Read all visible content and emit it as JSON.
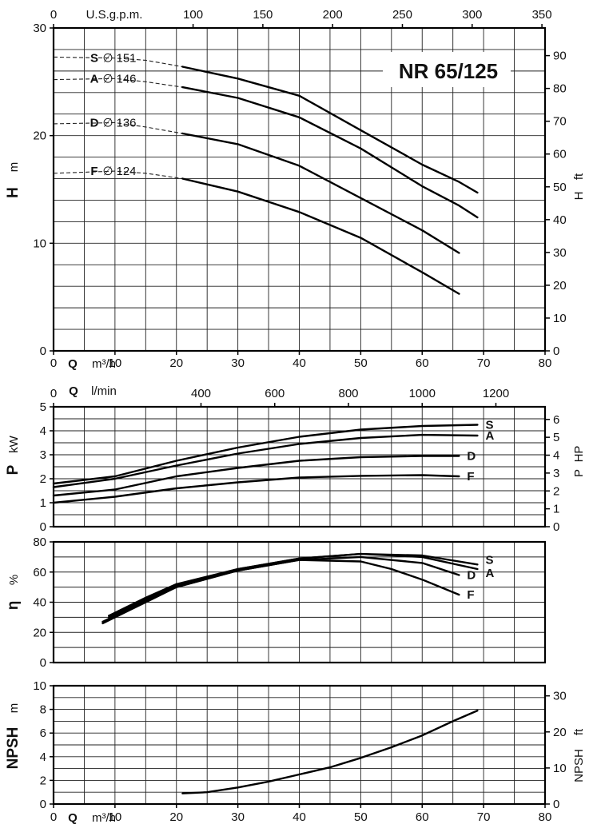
{
  "chart_data": {
    "title": "NR 65/125",
    "panels": [
      {
        "id": "head",
        "type": "line",
        "ylabel_big": "H",
        "ylabel_unit": "m",
        "y2label_big": "H",
        "y2label_unit": "ft",
        "x_top_label": "U.S.g.p.m.",
        "x_bottom_q": "Q",
        "x_bottom_unit": "m³/h",
        "x_ticks": [
          "0",
          "10",
          "20",
          "30",
          "40",
          "50",
          "60",
          "70",
          "80"
        ],
        "x_top_ticks": [
          "0",
          "100",
          "150",
          "200",
          "250",
          "300",
          "350"
        ],
        "y_ticks": [
          "0",
          "10",
          "20",
          "30"
        ],
        "y2_ticks": [
          "0",
          "10",
          "20",
          "30",
          "40",
          "50",
          "60",
          "70",
          "80",
          "90"
        ],
        "series": [
          {
            "name": "S",
            "diameter": "151",
            "solid": [
              [
                21,
                26.4
              ],
              [
                30,
                25.3
              ],
              [
                40,
                23.7
              ],
              [
                50,
                20.5
              ],
              [
                60,
                17.3
              ],
              [
                66,
                15.7
              ],
              [
                69,
                14.7
              ]
            ],
            "dashed": [
              [
                0,
                27.3
              ],
              [
                10,
                27.2
              ],
              [
                15,
                27.0
              ],
              [
                21,
                26.4
              ]
            ]
          },
          {
            "name": "A",
            "diameter": "146",
            "solid": [
              [
                21,
                24.5
              ],
              [
                30,
                23.5
              ],
              [
                40,
                21.7
              ],
              [
                50,
                18.8
              ],
              [
                60,
                15.3
              ],
              [
                66,
                13.5
              ],
              [
                69,
                12.4
              ]
            ],
            "dashed": [
              [
                0,
                25.2
              ],
              [
                10,
                25.3
              ],
              [
                15,
                25.0
              ],
              [
                21,
                24.5
              ]
            ]
          },
          {
            "name": "D",
            "diameter": "136",
            "solid": [
              [
                21,
                20.2
              ],
              [
                30,
                19.2
              ],
              [
                40,
                17.2
              ],
              [
                50,
                14.2
              ],
              [
                60,
                11.2
              ],
              [
                66,
                9.1
              ]
            ],
            "dashed": [
              [
                0,
                21.1
              ],
              [
                10,
                21.2
              ],
              [
                15,
                20.8
              ],
              [
                21,
                20.2
              ]
            ]
          },
          {
            "name": "F",
            "diameter": "124",
            "solid": [
              [
                21,
                16.0
              ],
              [
                30,
                14.8
              ],
              [
                40,
                12.9
              ],
              [
                50,
                10.5
              ],
              [
                60,
                7.3
              ],
              [
                66,
                5.3
              ]
            ],
            "dashed": [
              [
                0,
                16.5
              ],
              [
                10,
                16.7
              ],
              [
                15,
                16.5
              ],
              [
                21,
                16.0
              ]
            ]
          }
        ]
      },
      {
        "id": "power",
        "type": "line",
        "ylabel_big": "P",
        "ylabel_unit": "kW",
        "y2label_big": "P",
        "y2label_unit": "HP",
        "x_top_q": "Q",
        "x_top_unit": "l/min",
        "x_top_ticks": [
          "0",
          "400",
          "600",
          "800",
          "1000",
          "1200"
        ],
        "y_ticks": [
          "0",
          "1",
          "2",
          "3",
          "4",
          "5"
        ],
        "y2_ticks": [
          "0",
          "1",
          "2",
          "3",
          "4",
          "5",
          "6"
        ],
        "series": [
          {
            "name": "S",
            "points": [
              [
                0,
                1.8
              ],
              [
                10,
                2.1
              ],
              [
                20,
                2.75
              ],
              [
                30,
                3.3
              ],
              [
                40,
                3.75
              ],
              [
                50,
                4.05
              ],
              [
                60,
                4.2
              ],
              [
                69,
                4.25
              ]
            ]
          },
          {
            "name": "A",
            "points": [
              [
                0,
                1.65
              ],
              [
                10,
                2.0
              ],
              [
                20,
                2.55
              ],
              [
                30,
                3.05
              ],
              [
                40,
                3.45
              ],
              [
                50,
                3.7
              ],
              [
                60,
                3.83
              ],
              [
                69,
                3.8
              ]
            ]
          },
          {
            "name": "D",
            "points": [
              [
                0,
                1.3
              ],
              [
                10,
                1.55
              ],
              [
                20,
                2.1
              ],
              [
                30,
                2.45
              ],
              [
                40,
                2.75
              ],
              [
                50,
                2.9
              ],
              [
                60,
                2.95
              ],
              [
                66,
                2.95
              ]
            ]
          },
          {
            "name": "F",
            "points": [
              [
                0,
                1.0
              ],
              [
                10,
                1.25
              ],
              [
                20,
                1.6
              ],
              [
                30,
                1.85
              ],
              [
                40,
                2.05
              ],
              [
                50,
                2.12
              ],
              [
                60,
                2.15
              ],
              [
                66,
                2.1
              ]
            ]
          }
        ]
      },
      {
        "id": "efficiency",
        "type": "line",
        "ylabel_big": "η",
        "ylabel_unit": "%",
        "y_ticks": [
          "0",
          "20",
          "40",
          "60",
          "80"
        ],
        "series": [
          {
            "name": "S",
            "points": [
              [
                9,
                31
              ],
              [
                15,
                43
              ],
              [
                20,
                52
              ],
              [
                30,
                62
              ],
              [
                40,
                69
              ],
              [
                50,
                72
              ],
              [
                60,
                71
              ],
              [
                69,
                65
              ]
            ]
          },
          {
            "name": "A",
            "points": [
              [
                9,
                30
              ],
              [
                15,
                42
              ],
              [
                20,
                51
              ],
              [
                30,
                62
              ],
              [
                40,
                69
              ],
              [
                50,
                72
              ],
              [
                60,
                70
              ],
              [
                69,
                62
              ]
            ]
          },
          {
            "name": "D",
            "points": [
              [
                8,
                27
              ],
              [
                15,
                41
              ],
              [
                20,
                50
              ],
              [
                30,
                61
              ],
              [
                40,
                68
              ],
              [
                50,
                70
              ],
              [
                60,
                66
              ],
              [
                66,
                58
              ]
            ]
          },
          {
            "name": "F",
            "points": [
              [
                8,
                26
              ],
              [
                15,
                40
              ],
              [
                20,
                50
              ],
              [
                30,
                61
              ],
              [
                40,
                68
              ],
              [
                50,
                67
              ],
              [
                55,
                62
              ],
              [
                60,
                55
              ],
              [
                66,
                45
              ]
            ]
          }
        ]
      },
      {
        "id": "npsh",
        "type": "line",
        "ylabel_big": "NPSH",
        "ylabel_unit": "m",
        "y2label_big": "NPSH",
        "y2label_unit": "ft",
        "x_bottom_q": "Q",
        "x_bottom_unit": "m³/h",
        "x_ticks": [
          "0",
          "10",
          "20",
          "30",
          "40",
          "50",
          "60",
          "70",
          "80"
        ],
        "y_ticks": [
          "0",
          "2",
          "4",
          "6",
          "8",
          "10"
        ],
        "y2_ticks": [
          "0",
          "10",
          "20",
          "30"
        ],
        "series": [
          {
            "name": "NPSH",
            "points": [
              [
                21,
                0.9
              ],
              [
                25,
                1.0
              ],
              [
                30,
                1.4
              ],
              [
                35,
                1.9
              ],
              [
                40,
                2.5
              ],
              [
                45,
                3.1
              ],
              [
                50,
                3.9
              ],
              [
                55,
                4.8
              ],
              [
                60,
                5.8
              ],
              [
                65,
                7.0
              ],
              [
                69,
                7.9
              ]
            ]
          }
        ]
      }
    ]
  }
}
